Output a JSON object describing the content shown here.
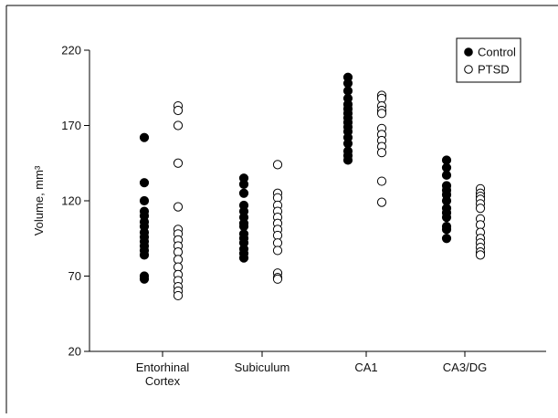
{
  "chart_data": {
    "type": "scatter",
    "title": "",
    "xlabel": "",
    "ylabel": "Volume, mm³",
    "ylim": [
      20,
      220
    ],
    "yticks": [
      "20",
      "70",
      "120",
      "170",
      "220"
    ],
    "categories": [
      {
        "lines": [
          "Entorhinal",
          "Cortex"
        ]
      },
      {
        "lines": [
          "Subiculum"
        ]
      },
      {
        "lines": [
          "CA1"
        ]
      },
      {
        "lines": [
          "CA3/DG"
        ]
      }
    ],
    "legend": {
      "position": "top-right",
      "entries": [
        {
          "label": "Control",
          "marker": "filled"
        },
        {
          "label": "PTSD",
          "marker": "open"
        }
      ]
    },
    "series": [
      {
        "name": "Control",
        "marker": "filled",
        "values": [
          [
            162,
            132,
            120,
            113,
            110,
            106,
            103,
            99,
            96,
            93,
            90,
            87,
            84,
            70,
            68
          ],
          [
            135,
            131,
            125,
            117,
            113,
            109,
            105,
            103,
            98,
            95,
            92,
            88,
            85,
            82
          ],
          [
            202,
            198,
            193,
            188,
            184,
            181,
            178,
            175,
            172,
            169,
            166,
            162,
            158,
            153,
            150,
            147
          ],
          [
            147,
            142,
            137,
            130,
            127,
            124,
            120,
            115,
            112,
            109,
            103,
            101,
            95
          ]
        ]
      },
      {
        "name": "PTSD",
        "marker": "open",
        "values": [
          [
            183,
            180,
            170,
            145,
            116,
            101,
            98,
            94,
            90,
            86,
            81,
            76,
            71,
            67,
            63,
            60,
            57
          ],
          [
            144,
            125,
            122,
            117,
            113,
            109,
            105,
            101,
            97,
            92,
            87,
            72,
            69,
            68
          ],
          [
            190,
            188,
            183,
            180,
            178,
            168,
            164,
            160,
            156,
            152,
            133,
            119
          ],
          [
            128,
            125,
            123,
            121,
            118,
            115,
            108,
            104,
            99,
            95,
            92,
            89,
            86,
            84
          ]
        ]
      }
    ]
  }
}
